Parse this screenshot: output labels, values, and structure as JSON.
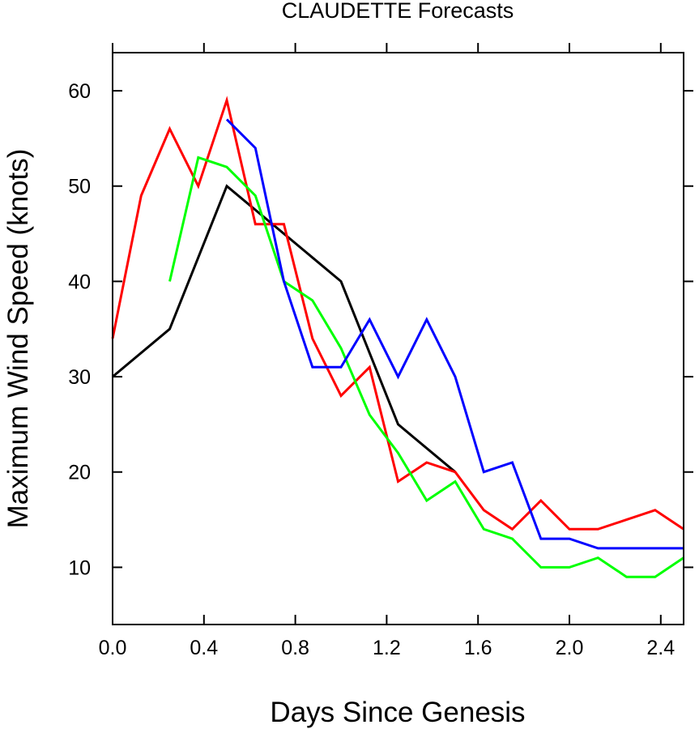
{
  "chart_data": {
    "type": "line",
    "title": "CLAUDETTE Forecasts",
    "xlabel": "Days Since Genesis",
    "ylabel": "Maximum Wind Speed (knots)",
    "xlim": [
      0,
      2.5
    ],
    "ylim": [
      4,
      64
    ],
    "xticks": [
      0.0,
      0.4,
      0.8,
      1.2,
      1.6,
      2.0,
      2.4
    ],
    "xtick_labels": [
      "0.0",
      "0.4",
      "0.8",
      "1.2",
      "1.6",
      "2.0",
      "2.4"
    ],
    "yticks": [
      10,
      20,
      30,
      40,
      50,
      60
    ],
    "ytick_labels": [
      "10",
      "20",
      "30",
      "40",
      "50",
      "60"
    ],
    "grid": false,
    "legend": "none",
    "series": [
      {
        "color": "#000000",
        "x": [
          0.0,
          0.25,
          0.5,
          1.0,
          1.25,
          1.5
        ],
        "y": [
          30,
          35,
          50,
          40,
          25,
          20
        ]
      },
      {
        "color": "#ff0000",
        "x": [
          0.0,
          0.125,
          0.25,
          0.375,
          0.5,
          0.625,
          0.75,
          0.875,
          1.0,
          1.125,
          1.25,
          1.375,
          1.5,
          1.625,
          1.75,
          1.875,
          2.0,
          2.125,
          2.25,
          2.375,
          2.5
        ],
        "y": [
          34,
          49,
          56,
          50,
          59,
          46,
          46,
          34,
          28,
          31,
          19,
          21,
          20,
          16,
          14,
          17,
          14,
          14,
          15,
          16,
          14
        ]
      },
      {
        "color": "#00ff00",
        "x": [
          0.25,
          0.375,
          0.5,
          0.625,
          0.75,
          0.875,
          1.0,
          1.125,
          1.25,
          1.375,
          1.5,
          1.625,
          1.75,
          1.875,
          2.0,
          2.125,
          2.25,
          2.375,
          2.5
        ],
        "y": [
          40,
          53,
          52,
          49,
          40,
          38,
          33,
          26,
          22,
          17,
          19,
          14,
          13,
          10,
          10,
          11,
          9,
          9,
          11
        ]
      },
      {
        "color": "#0000ff",
        "x": [
          0.5,
          0.625,
          0.75,
          0.875,
          1.0,
          1.125,
          1.25,
          1.375,
          1.5,
          1.625,
          1.75,
          1.875,
          2.0,
          2.125,
          2.25,
          2.375,
          2.5
        ],
        "y": [
          57,
          54,
          40,
          31,
          31,
          36,
          30,
          36,
          30,
          20,
          21,
          13,
          13,
          12,
          12,
          12,
          12
        ]
      }
    ]
  }
}
